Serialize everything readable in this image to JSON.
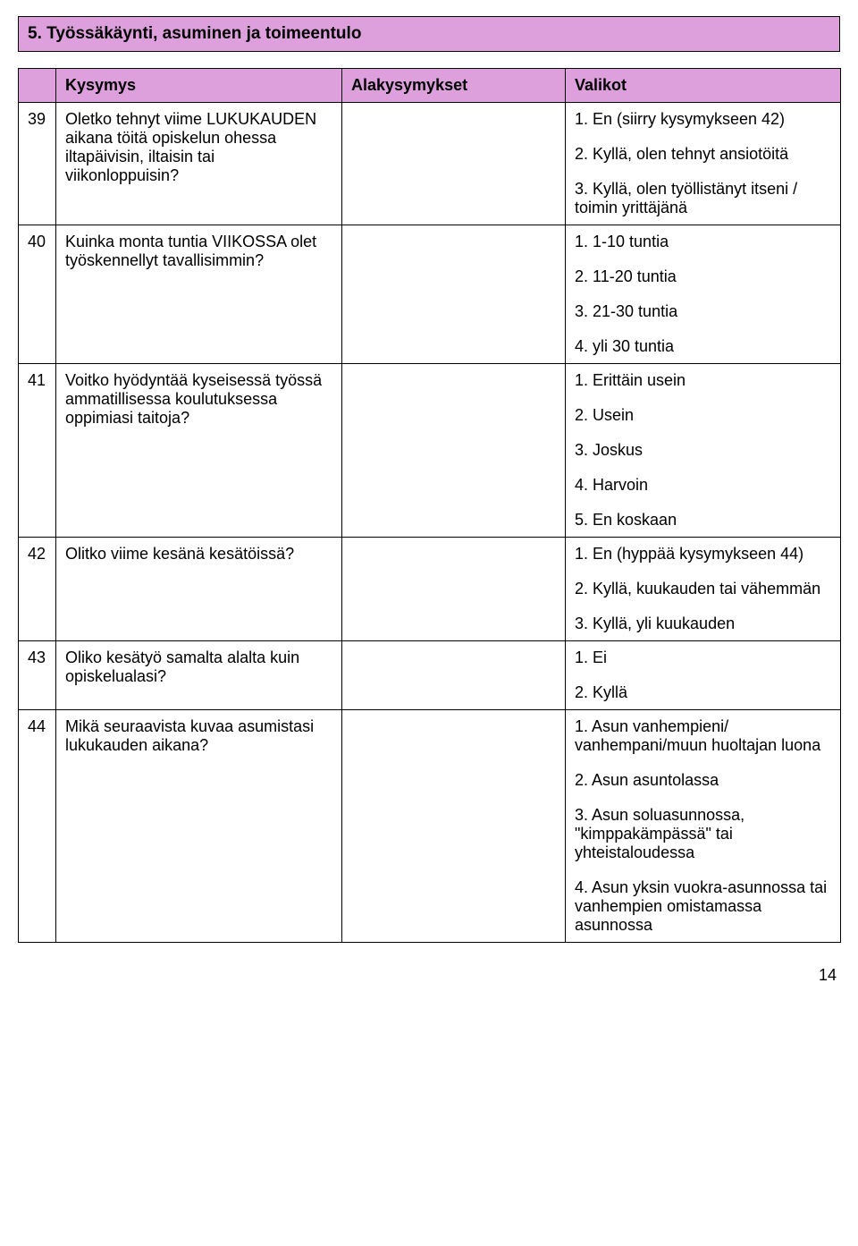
{
  "colors": {
    "header_bg": "#dda0dd",
    "table_header_bg": "#dda0dd",
    "border": "#000000",
    "text": "#000000",
    "background": "#ffffff"
  },
  "section_title": "5. Työssäkäynti, asuminen ja toimeentulo",
  "columns": {
    "num": "",
    "kysymys": "Kysymys",
    "alakysymykset": "Alakysymykset",
    "valikot": "Valikot"
  },
  "rows": [
    {
      "num": "39",
      "question": "Oletko tehnyt viime LUKUKAUDEN aikana töitä opiskelun ohessa iltapäivisin, iltaisin tai viikonloppuisin?",
      "sub": "",
      "options": [
        [
          "1. En (siirry kysymykseen 42)"
        ],
        [
          "2. Kyllä, olen tehnyt ansiotöitä"
        ],
        [
          "3. Kyllä, olen työllistänyt itseni / toimin yrittäjänä"
        ]
      ]
    },
    {
      "num": "40",
      "question": "Kuinka monta tuntia VIIKOSSA olet työskennellyt tavallisimmin?",
      "sub": "",
      "options": [
        [
          "1. 1-10 tuntia"
        ],
        [
          "2. 11-20 tuntia"
        ],
        [
          "3. 21-30 tuntia"
        ],
        [
          "4. yli 30 tuntia"
        ]
      ]
    },
    {
      "num": "41",
      "question": "Voitko hyödyntää kyseisessä työssä ammatillisessa koulutuksessa oppimiasi taitoja?",
      "sub": "",
      "options": [
        [
          "1. Erittäin usein"
        ],
        [
          "2. Usein"
        ],
        [
          "3. Joskus"
        ],
        [
          "4. Harvoin"
        ],
        [
          "5. En koskaan"
        ]
      ]
    },
    {
      "num": "42",
      "question": "Olitko viime kesänä kesätöissä?",
      "sub": "",
      "options": [
        [
          "1. En (hyppää kysymykseen 44)"
        ],
        [
          "2. Kyllä, kuukauden tai vähemmän"
        ],
        [
          "3. Kyllä, yli kuukauden"
        ]
      ]
    },
    {
      "num": "43",
      "question": "Oliko kesätyö samalta alalta kuin opiskelualasi?",
      "sub": "",
      "options": [
        [
          "1. Ei"
        ],
        [
          "2. Kyllä"
        ]
      ]
    },
    {
      "num": "44",
      "question": "Mikä seuraavista kuvaa asumistasi lukukauden aikana?",
      "sub": "",
      "options": [
        [
          "1. Asun vanhempieni/ vanhempani/muun huoltajan luona"
        ],
        [
          "2. Asun asuntolassa"
        ],
        [
          "3. Asun soluasunnossa, \"kimppakämpässä\" tai yhteistaloudessa"
        ],
        [
          "4. Asun yksin vuokra-asunnossa tai vanhempien omistamassa asunnossa"
        ]
      ]
    }
  ],
  "page_number": "14"
}
